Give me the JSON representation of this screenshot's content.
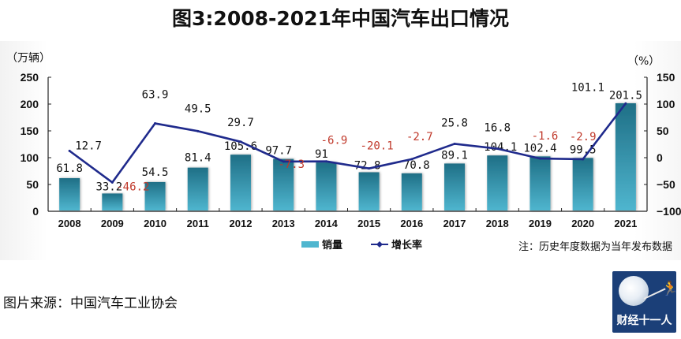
{
  "title": "图3:2008-2021年中国汽车出口情况",
  "source_text": "图片来源：中国汽车工业协会",
  "logo_text": "财经十一人",
  "colors": {
    "bar_top": "#1f6f86",
    "bar_bottom": "#4fb6cf",
    "line": "#1f2a8c",
    "negative_label": "#c0392b",
    "axis": "#222222"
  },
  "chart_data": {
    "type": "bar+line",
    "title": "图3:2008-2021年中国汽车出口情况",
    "categories": [
      "2008",
      "2009",
      "2010",
      "2011",
      "2012",
      "2013",
      "2014",
      "2015",
      "2016",
      "2017",
      "2018",
      "2019",
      "2020",
      "2021"
    ],
    "series": [
      {
        "name": "销量",
        "type": "bar",
        "axis": "left",
        "values": [
          61.8,
          33.2,
          54.5,
          81.4,
          105.6,
          97.7,
          91,
          72.8,
          70.8,
          89.1,
          104.1,
          102.4,
          99.5,
          201.5
        ],
        "labels": [
          "61.8",
          "33.2",
          "54.5",
          "81.4",
          "105.6",
          "97.7",
          "91",
          "72.8",
          "70.8",
          "89.1",
          "104.1",
          "102.4",
          "99.5",
          "201.5"
        ]
      },
      {
        "name": "增长率",
        "type": "line",
        "axis": "right",
        "values": [
          12.7,
          -46.2,
          63.9,
          49.5,
          29.7,
          -7.3,
          -6.9,
          -20.1,
          -2.7,
          25.8,
          16.8,
          -1.6,
          -2.9,
          101.1
        ],
        "labels": [
          "12.7",
          "-46.2",
          "63.9",
          "49.5",
          "29.7",
          "-7.3",
          "-6.9",
          "-20.1",
          "-2.7",
          "25.8",
          "16.8",
          "-1.6",
          "-2.9",
          "101.1"
        ]
      }
    ],
    "left_axis": {
      "label": "（万辆）",
      "ylim": [
        0,
        250
      ],
      "ticks": [
        "0",
        "50",
        "100",
        "150",
        "200",
        "250"
      ]
    },
    "right_axis": {
      "label": "（%）",
      "ylim": [
        -100,
        150
      ],
      "ticks": [
        "-100",
        "-50",
        "0",
        "50",
        "100",
        "150"
      ]
    },
    "legend": {
      "position": "bottom-center",
      "entries": [
        "销量",
        "增长率"
      ]
    },
    "note": "注：历史年度数据为当年发布数据",
    "grid": false
  }
}
